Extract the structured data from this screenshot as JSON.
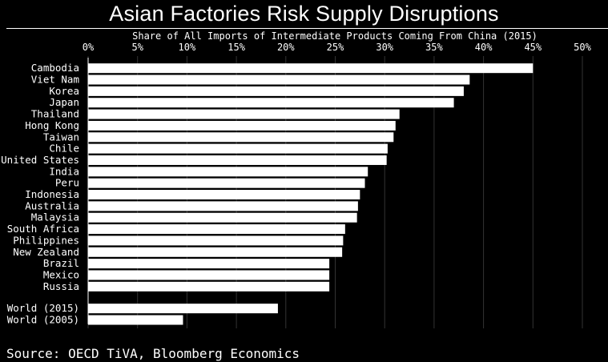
{
  "title": "Asian Factories Risk Supply Disruptions",
  "source": "Source: OECD TiVA, Bloomberg Economics",
  "chart_data": {
    "type": "bar",
    "orientation": "horizontal",
    "xlabel": "Share of All Imports of Intermediate Products Coming From China (2015)",
    "ylabel": "",
    "xlim": [
      0,
      50
    ],
    "ticks": [
      0,
      5,
      10,
      15,
      20,
      25,
      30,
      35,
      40,
      45,
      50
    ],
    "tick_labels": [
      "0%",
      "5%",
      "10%",
      "15%",
      "20%",
      "25%",
      "30%",
      "35%",
      "40%",
      "45%",
      "50%"
    ],
    "grid": true,
    "categories": [
      "Cambodia",
      "Viet Nam",
      "Korea",
      "Japan",
      "Thailand",
      "Hong Kong",
      "Taiwan",
      "Chile",
      "United States",
      "India",
      "Peru",
      "Indonesia",
      "Australia",
      "Malaysia",
      "South Africa",
      "Philippines",
      "New Zealand",
      "Brazil",
      "Mexico",
      "Russia",
      "World (2015)",
      "World (2005)"
    ],
    "values": [
      45.0,
      38.6,
      38.0,
      37.0,
      31.5,
      31.1,
      30.9,
      30.3,
      30.2,
      28.3,
      28.0,
      27.5,
      27.3,
      27.2,
      26.0,
      25.8,
      25.7,
      24.4,
      24.4,
      24.4,
      19.2,
      9.6
    ],
    "group_break_after": "Russia",
    "colors": {
      "background": "#000000",
      "bar": "#ffffff",
      "grid": "#333333",
      "text": "#ffffff"
    }
  }
}
